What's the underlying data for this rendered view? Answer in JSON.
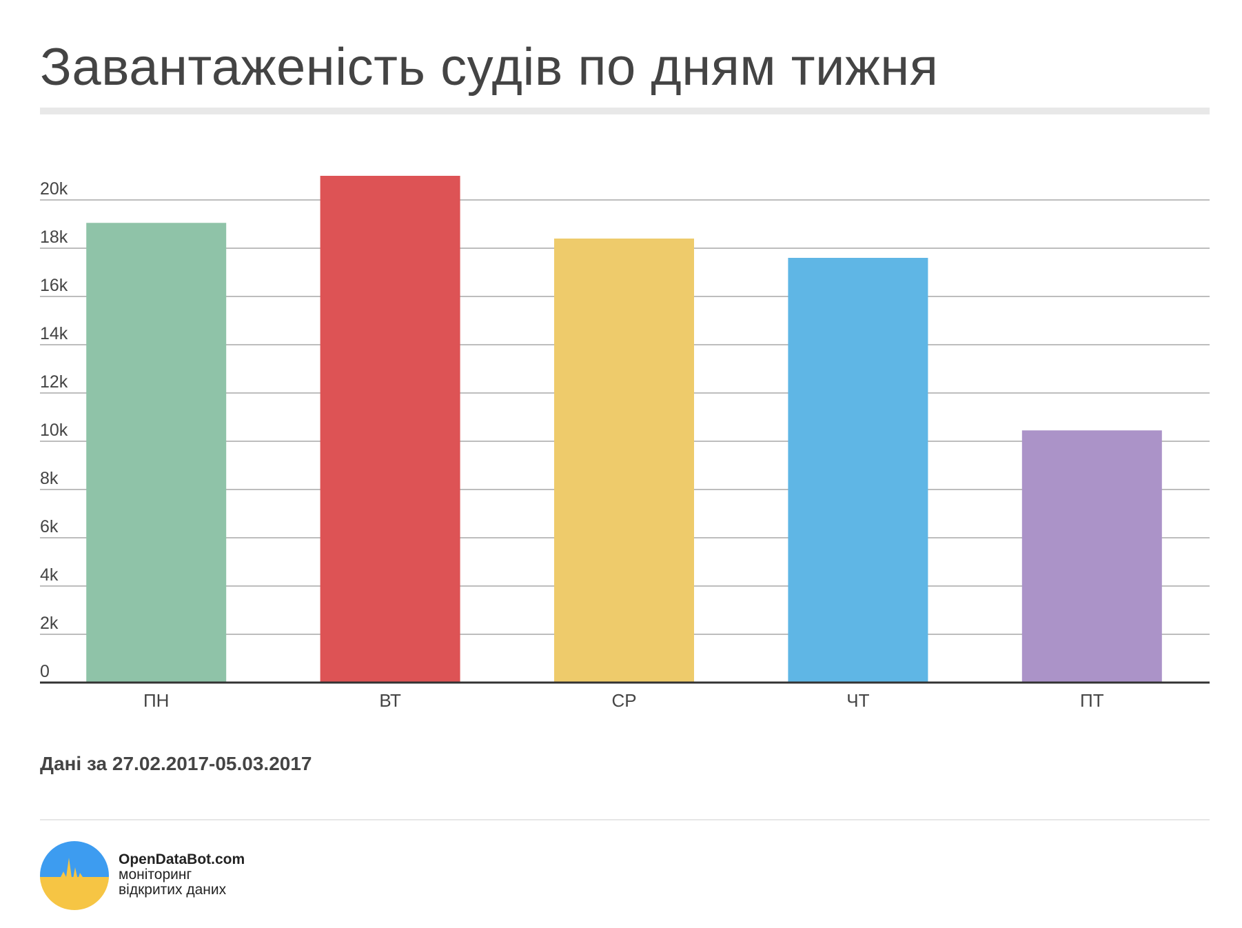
{
  "header": {
    "title": "Завантаженість судів по дням тижня"
  },
  "chart_data": {
    "type": "bar",
    "title": "Завантаженість судів по дням тижня",
    "xlabel": "",
    "ylabel": "",
    "categories": [
      "ПН",
      "ВТ",
      "СР",
      "ЧТ",
      "ПТ"
    ],
    "values": [
      19050,
      21000,
      18400,
      17600,
      10450
    ],
    "colors": [
      "#8fc3a8",
      "#dd5355",
      "#eecb6b",
      "#5fb6e5",
      "#ab93c8"
    ],
    "ylim": [
      0,
      21000
    ],
    "yticks": [
      0,
      2000,
      4000,
      6000,
      8000,
      10000,
      12000,
      14000,
      16000,
      18000,
      20000
    ],
    "ytick_labels": [
      "0",
      "2k",
      "4k",
      "6k",
      "8k",
      "10k",
      "12k",
      "14k",
      "16k",
      "18k",
      "20k"
    ],
    "grid": true,
    "legend": "none"
  },
  "footer": {
    "note": "Дані за 27.02.2017-05.03.2017",
    "brand_name": "OpenDataBot.com",
    "brand_tag_line1": "моніторинг",
    "brand_tag_line2": "відкритих даних",
    "logo_colors": {
      "top": "#3d9cf0",
      "bottom": "#f6c544",
      "spike": "#f6c544"
    }
  }
}
